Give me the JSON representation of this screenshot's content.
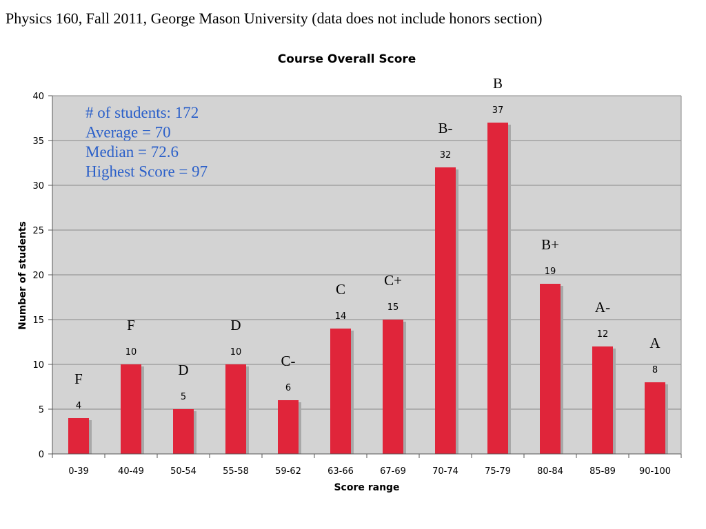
{
  "header": {
    "title": "Physics 160, Fall 2011, George Mason University (data does not include honors section)"
  },
  "chart_data": {
    "type": "bar",
    "title": "Course Overall Score",
    "xlabel": "Score range",
    "ylabel": "Number of students",
    "ylim": [
      0,
      40
    ],
    "yticks": [
      0,
      5,
      10,
      15,
      20,
      25,
      30,
      35,
      40
    ],
    "grid": true,
    "categories": [
      "0-39",
      "40-49",
      "50-54",
      "55-58",
      "59-62",
      "63-66",
      "67-69",
      "70-74",
      "75-79",
      "80-84",
      "85-89",
      "90-100"
    ],
    "values": [
      4,
      10,
      5,
      10,
      6,
      14,
      15,
      32,
      37,
      19,
      12,
      8
    ],
    "grades": [
      "F",
      "F",
      "D",
      "D",
      "C-",
      "C",
      "C+",
      "B-",
      "B",
      "B+",
      "A-",
      "A"
    ],
    "annotation_lines": [
      "# of students: 172",
      "Average = 70",
      "Median = 72.6",
      "Highest Score = 97"
    ],
    "colors": {
      "bar": "#e0253a",
      "shadow": "#a8a8a8",
      "plot_bg": "#d3d3d3",
      "grid": "#8a8a8a",
      "annotation": "#2a5fc9"
    }
  }
}
